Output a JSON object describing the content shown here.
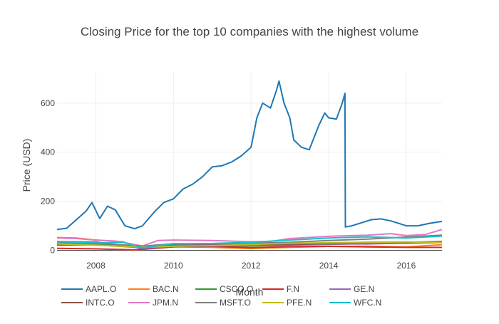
{
  "chart_data": {
    "type": "line",
    "title": "Closing Price for the top 10 companies with the highest volume",
    "xlabel": "Month",
    "ylabel": "Price (USD)",
    "x_tick_labels": [
      "2008",
      "2010",
      "2012",
      "2014",
      "2016"
    ],
    "y_tick_labels": [
      "0",
      "200",
      "400",
      "600"
    ],
    "x_ticks": [
      2008,
      2010,
      2012,
      2014,
      2016
    ],
    "y_ticks": [
      0,
      200,
      400,
      600
    ],
    "xlim": [
      2007.0,
      2016.92
    ],
    "ylim": [
      -10,
      730
    ],
    "grid": true,
    "legend_position": "bottom",
    "series": [
      {
        "name": "AAPL.O",
        "color": "#1f77b4",
        "x": [
          2007.0,
          2007.25,
          2007.5,
          2007.75,
          2007.9,
          2008.1,
          2008.3,
          2008.5,
          2008.75,
          2009.0,
          2009.2,
          2009.5,
          2009.75,
          2010.0,
          2010.25,
          2010.5,
          2010.75,
          2011.0,
          2011.25,
          2011.5,
          2011.75,
          2012.0,
          2012.15,
          2012.3,
          2012.5,
          2012.65,
          2012.72,
          2012.85,
          2013.0,
          2013.1,
          2013.3,
          2013.5,
          2013.75,
          2013.9,
          2014.0,
          2014.2,
          2014.35,
          2014.42,
          2014.43,
          2014.6,
          2014.9,
          2015.1,
          2015.35,
          2015.6,
          2015.8,
          2016.0,
          2016.3,
          2016.6,
          2016.92
        ],
        "y": [
          85,
          90,
          125,
          160,
          195,
          130,
          180,
          165,
          100,
          88,
          100,
          155,
          195,
          210,
          250,
          270,
          300,
          340,
          345,
          360,
          385,
          420,
          540,
          600,
          580,
          650,
          690,
          600,
          540,
          450,
          420,
          410,
          510,
          560,
          540,
          535,
          600,
          640,
          95,
          100,
          115,
          125,
          128,
          120,
          110,
          100,
          100,
          110,
          118
        ]
      },
      {
        "name": "BAC.N",
        "color": "#ff7f0e",
        "x": [
          2007.0,
          2007.5,
          2008.0,
          2008.7,
          2009.2,
          2010.0,
          2011.0,
          2012.0,
          2013.0,
          2014.0,
          2015.0,
          2016.0,
          2016.92
        ],
        "y": [
          52,
          50,
          42,
          35,
          4,
          15,
          12,
          7,
          12,
          16,
          17,
          14,
          23
        ]
      },
      {
        "name": "CSCO.O",
        "color": "#2ca02c",
        "x": [
          2007.0,
          2008.0,
          2009.2,
          2010.0,
          2011.0,
          2012.0,
          2013.0,
          2014.0,
          2015.0,
          2016.0,
          2016.92
        ],
        "y": [
          27,
          25,
          15,
          22,
          19,
          18,
          22,
          24,
          28,
          29,
          32
        ]
      },
      {
        "name": "F.N",
        "color": "#d62728",
        "x": [
          2007.0,
          2008.0,
          2009.0,
          2010.0,
          2011.0,
          2012.0,
          2013.0,
          2014.0,
          2015.0,
          2016.0,
          2016.92
        ],
        "y": [
          8,
          6,
          2,
          14,
          16,
          11,
          15,
          16,
          14,
          12,
          12
        ]
      },
      {
        "name": "GE.N",
        "color": "#9467bd",
        "x": [
          2007.0,
          2008.0,
          2009.2,
          2010.0,
          2011.0,
          2012.0,
          2013.0,
          2014.0,
          2015.0,
          2016.0,
          2016.92
        ],
        "y": [
          36,
          34,
          8,
          16,
          18,
          21,
          25,
          26,
          26,
          30,
          32
        ]
      },
      {
        "name": "INTC.O",
        "color": "#8c564b",
        "x": [
          2007.0,
          2008.0,
          2009.0,
          2010.0,
          2011.0,
          2012.0,
          2013.0,
          2014.0,
          2015.0,
          2016.0,
          2016.92
        ],
        "y": [
          21,
          22,
          13,
          20,
          21,
          25,
          23,
          30,
          33,
          33,
          36
        ]
      },
      {
        "name": "JPM.N",
        "color": "#e377c2",
        "x": [
          2007.0,
          2007.5,
          2008.0,
          2008.5,
          2009.2,
          2009.6,
          2010.0,
          2011.0,
          2012.0,
          2012.5,
          2013.0,
          2014.0,
          2015.0,
          2015.6,
          2016.0,
          2016.5,
          2016.92
        ],
        "y": [
          50,
          48,
          42,
          38,
          18,
          40,
          42,
          40,
          35,
          36,
          48,
          57,
          62,
          68,
          60,
          65,
          85
        ]
      },
      {
        "name": "MSFT.O",
        "color": "#7f7f7f",
        "x": [
          2007.0,
          2008.0,
          2009.2,
          2010.0,
          2011.0,
          2012.0,
          2013.0,
          2014.0,
          2015.0,
          2016.0,
          2016.92
        ],
        "y": [
          30,
          30,
          17,
          27,
          26,
          29,
          33,
          40,
          46,
          54,
          62
        ]
      },
      {
        "name": "PFE.N",
        "color": "#bcbd22",
        "x": [
          2007.0,
          2008.0,
          2009.2,
          2010.0,
          2011.0,
          2012.0,
          2013.0,
          2014.0,
          2015.0,
          2016.0,
          2016.92
        ],
        "y": [
          26,
          21,
          13,
          17,
          19,
          24,
          29,
          31,
          33,
          34,
          32
        ]
      },
      {
        "name": "WFC.N",
        "color": "#17becf",
        "x": [
          2007.0,
          2008.0,
          2008.7,
          2009.2,
          2010.0,
          2011.0,
          2012.0,
          2013.0,
          2014.0,
          2015.0,
          2016.0,
          2016.92
        ],
        "y": [
          36,
          30,
          33,
          10,
          27,
          28,
          33,
          42,
          50,
          55,
          50,
          58
        ]
      }
    ]
  }
}
